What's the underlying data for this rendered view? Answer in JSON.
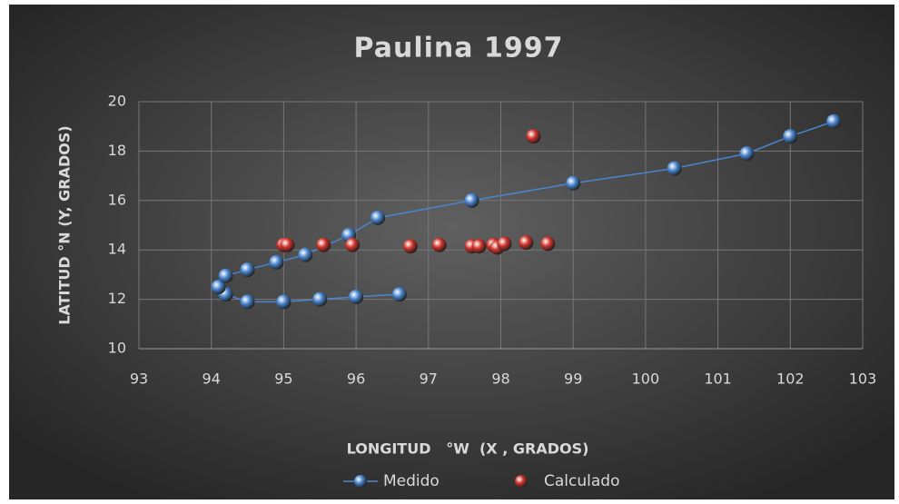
{
  "chart_data": {
    "type": "scatter",
    "title": "Paulina 1997",
    "x_label": "LONGITUD   °W  (X , GRADOS)",
    "y_label": "LATITUD  °N  (Y, GRADOS)",
    "xlim": [
      93,
      103
    ],
    "xticks": [
      93,
      94,
      95,
      96,
      97,
      98,
      99,
      100,
      101,
      102,
      103
    ],
    "ylim": [
      10,
      20
    ],
    "yticks": [
      10,
      12,
      14,
      16,
      18,
      20
    ],
    "grid": true,
    "legend": "bottom",
    "series": [
      {
        "name": "Medido",
        "color": "#4a86d0",
        "line": true,
        "x": [
          96.6,
          96.0,
          95.5,
          95.0,
          94.5,
          94.2,
          94.1,
          94.2,
          94.5,
          94.9,
          95.3,
          95.9,
          96.3,
          97.6,
          99.0,
          100.4,
          101.4,
          102.0,
          102.6
        ],
        "values": [
          12.2,
          12.1,
          12.0,
          11.9,
          11.9,
          12.2,
          12.5,
          12.95,
          13.2,
          13.5,
          13.8,
          14.6,
          15.3,
          16.0,
          16.7,
          17.3,
          17.9,
          18.6,
          19.2
        ]
      },
      {
        "name": "Calculado",
        "color": "#d0342c",
        "line": false,
        "x": [
          95.0,
          95.05,
          95.55,
          95.95,
          96.75,
          97.15,
          97.6,
          97.7,
          97.9,
          97.95,
          98.05,
          98.35,
          98.65,
          98.45
        ],
        "values": [
          14.2,
          14.2,
          14.2,
          14.2,
          14.15,
          14.2,
          14.15,
          14.15,
          14.2,
          14.1,
          14.25,
          14.3,
          14.25,
          18.6
        ]
      }
    ]
  }
}
